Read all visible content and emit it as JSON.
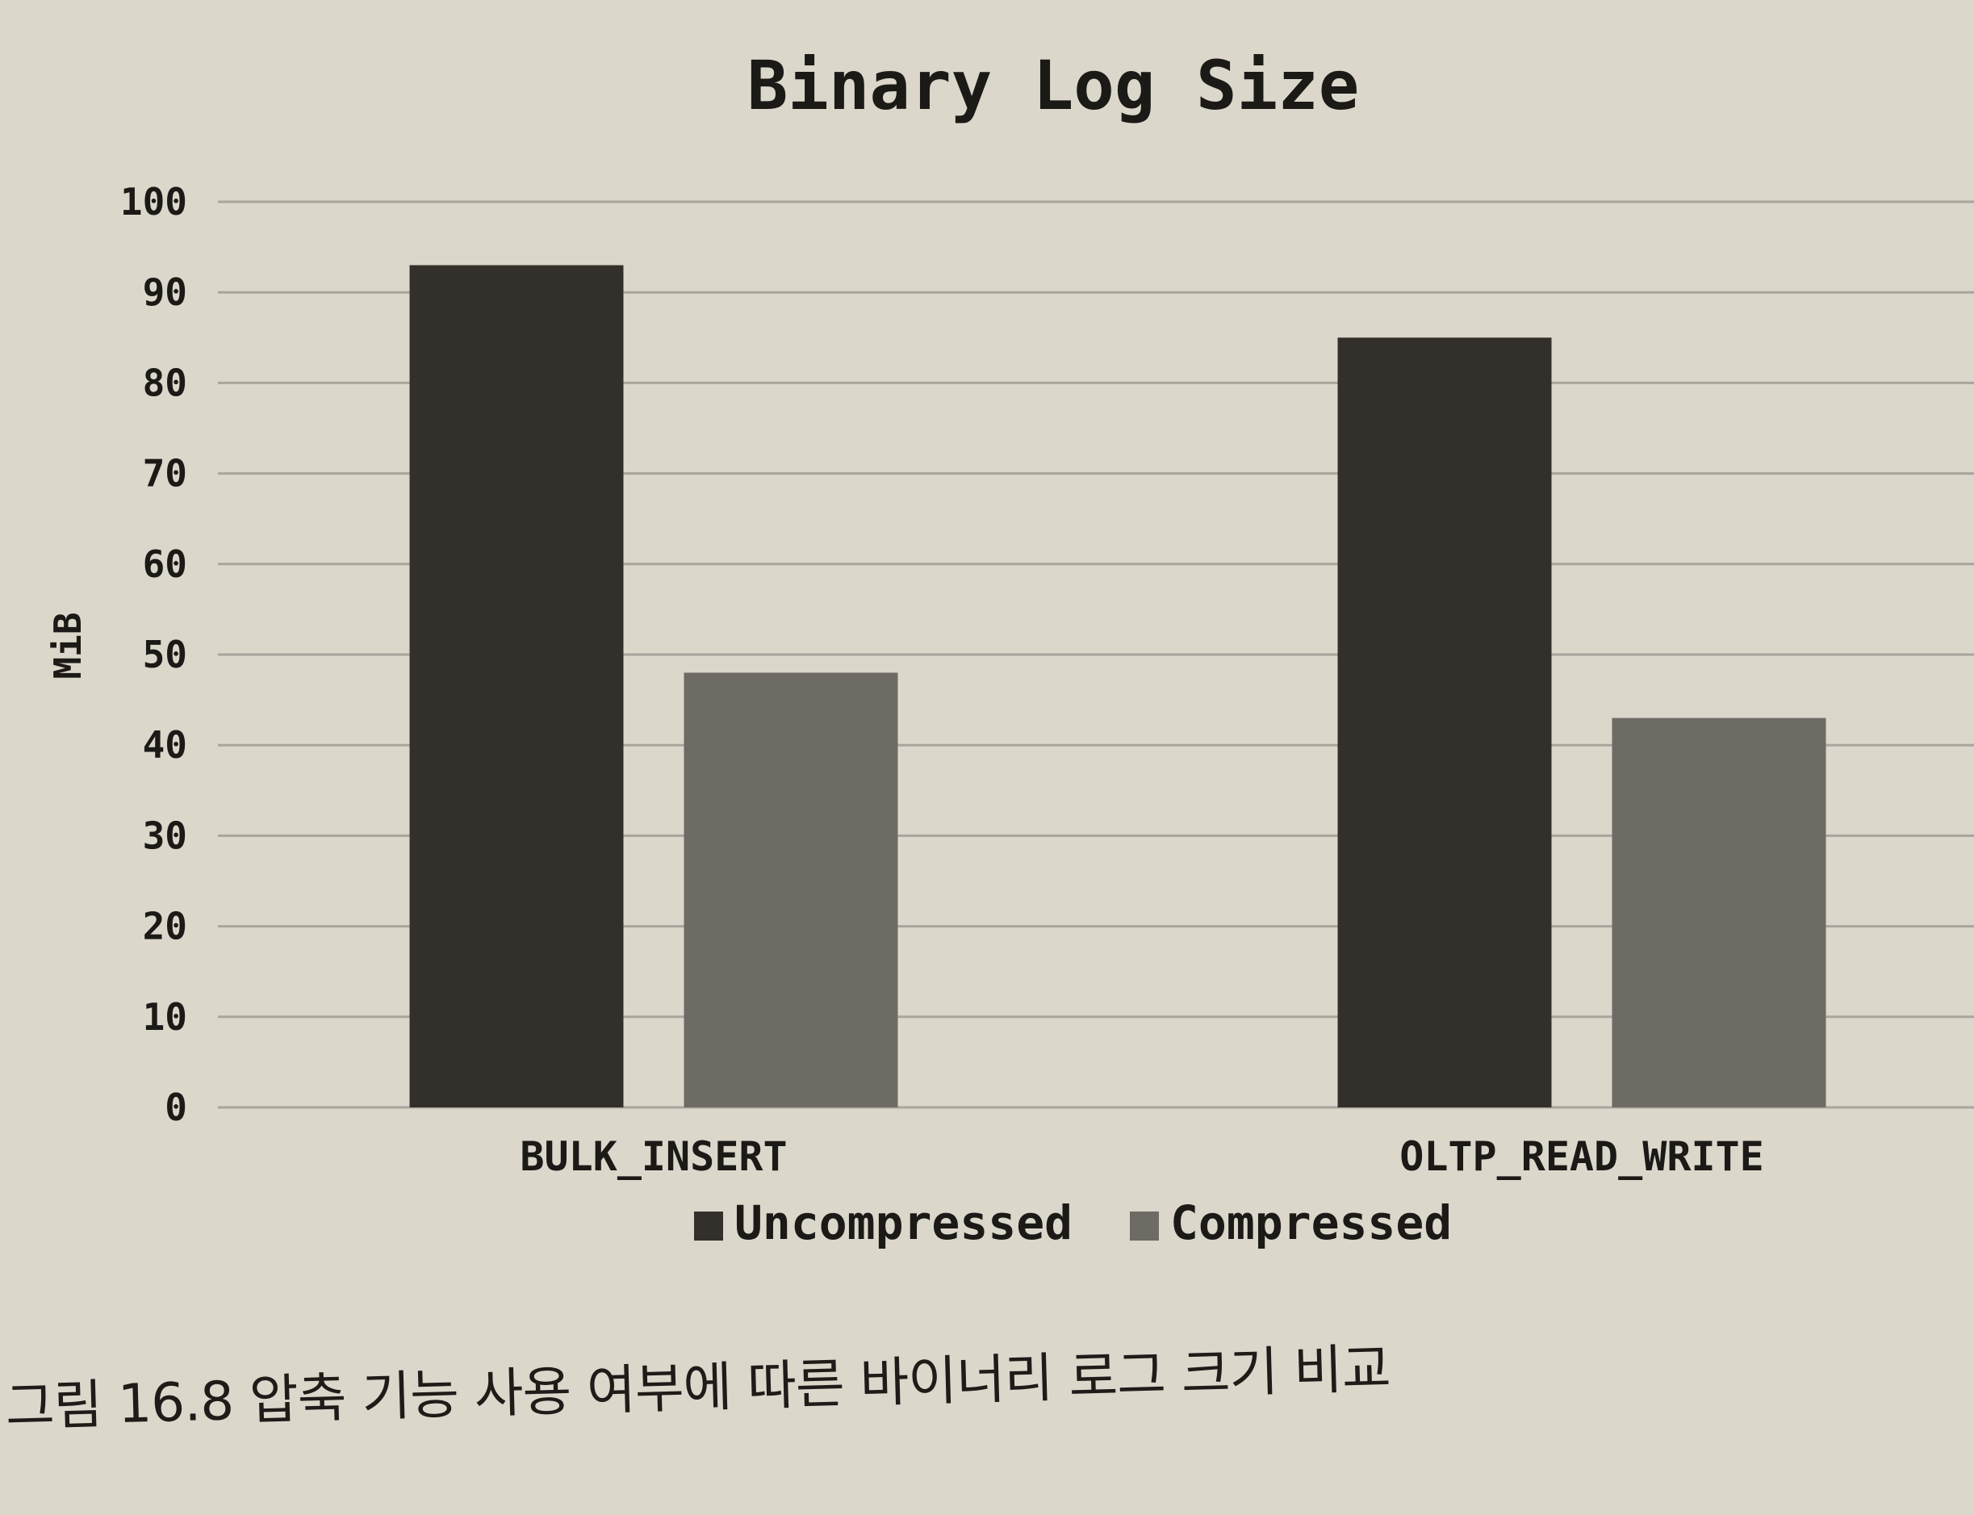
{
  "chart_data": {
    "type": "bar",
    "title": "Binary Log Size",
    "xlabel": "",
    "ylabel": "MiB",
    "categories": [
      "BULK_INSERT",
      "OLTP_READ_WRITE"
    ],
    "series": [
      {
        "name": "Uncompressed",
        "values": [
          93,
          85
        ],
        "color": "#33302b"
      },
      {
        "name": "Compressed",
        "values": [
          48,
          43
        ],
        "color": "#6e6b65"
      }
    ],
    "ylim": [
      0,
      100
    ],
    "yticks": [
      "0",
      "10",
      "20",
      "30",
      "40",
      "50",
      "60",
      "70",
      "80",
      "90",
      "100"
    ],
    "grid": true,
    "legend_position": "bottom-center"
  },
  "caption": "그림 16.8 압축 기능 사용 여부에 따른 바이너리 로그 크기 비교",
  "colors": {
    "background": "#dcd7cb",
    "gridline": "#a9a59c",
    "text": "#1c1a17"
  }
}
